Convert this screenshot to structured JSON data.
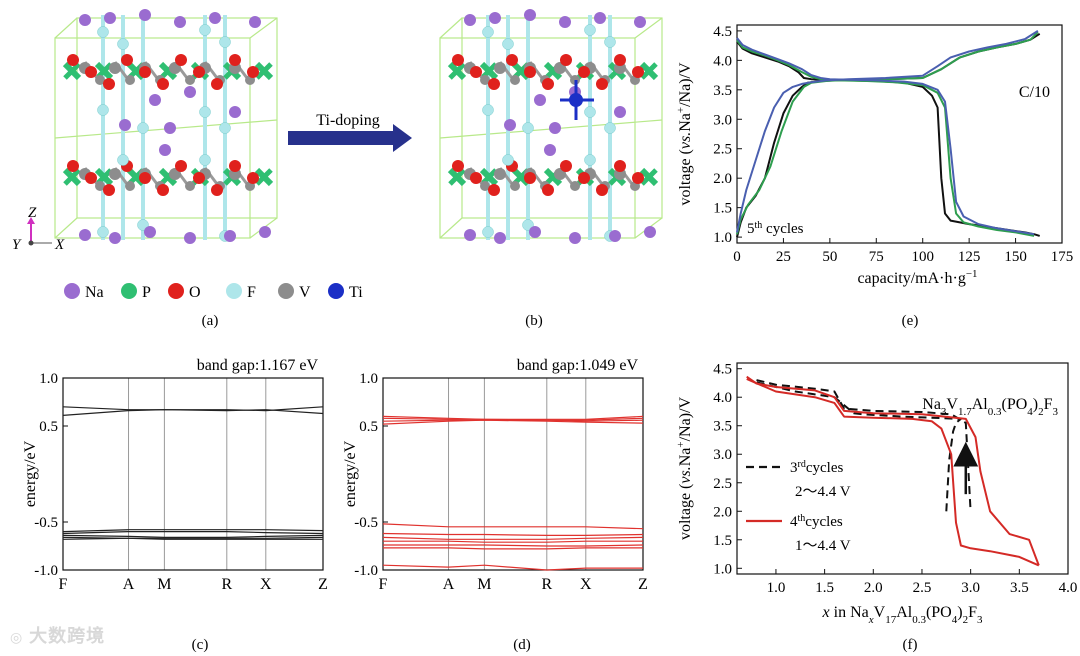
{
  "panels": {
    "a": "(a)",
    "b": "(b)",
    "c": "(c)",
    "d": "(d)",
    "e": "(e)",
    "f": "(f)"
  },
  "crystal": {
    "arrow_label": "Ti-doping",
    "axes": {
      "z": "Z",
      "y": "Y",
      "x": "X"
    },
    "legend": [
      {
        "label": "Na",
        "color": "#9a6cd0"
      },
      {
        "label": "P",
        "color": "#2fbf72"
      },
      {
        "label": "O",
        "color": "#e0211d"
      },
      {
        "label": "F",
        "color": "#aee6ea"
      },
      {
        "label": "V",
        "color": "#8d8d8d"
      },
      {
        "label": "Ti",
        "color": "#1b2fc6"
      }
    ]
  },
  "watermark": "大数跨境",
  "chart_data": [
    {
      "id": "c",
      "type": "line",
      "annotation": "band gap:1.167 eV",
      "ylabel": "energy/eV",
      "ylim": [
        -1.0,
        1.0
      ],
      "yticks": [
        "1.0",
        "0.5",
        "-0.5",
        "-1.0"
      ],
      "ytick_values": [
        1.0,
        0.5,
        -0.5,
        -1.0
      ],
      "xticks": [
        "F",
        "A",
        "M",
        "R",
        "X",
        "Z"
      ],
      "xtick_positions": [
        0,
        0.252,
        0.39,
        0.63,
        0.78,
        1.0
      ],
      "color": "#222222",
      "series": [
        {
          "values": [
            0.7,
            0.67,
            0.67,
            0.67,
            0.66,
            0.7
          ]
        },
        {
          "values": [
            0.61,
            0.66,
            0.67,
            0.66,
            0.67,
            0.63
          ]
        },
        {
          "values": [
            -0.6,
            -0.58,
            -0.58,
            -0.58,
            -0.58,
            -0.59
          ]
        },
        {
          "values": [
            -0.62,
            -0.6,
            -0.6,
            -0.6,
            -0.61,
            -0.62
          ]
        },
        {
          "values": [
            -0.64,
            -0.65,
            -0.66,
            -0.66,
            -0.65,
            -0.64
          ]
        },
        {
          "values": [
            -0.66,
            -0.67,
            -0.67,
            -0.67,
            -0.67,
            -0.66
          ]
        },
        {
          "values": [
            -0.68,
            -0.67,
            -0.68,
            -0.68,
            -0.68,
            -0.68
          ]
        }
      ]
    },
    {
      "id": "d",
      "type": "line",
      "annotation": "band gap:1.049 eV",
      "ylabel": "energy/eV",
      "ylim": [
        -1.0,
        1.0
      ],
      "yticks": [
        "1.0",
        "0.5",
        "-0.5",
        "-1.0"
      ],
      "ytick_values": [
        1.0,
        0.5,
        -0.5,
        -1.0
      ],
      "xticks": [
        "F",
        "A",
        "M",
        "R",
        "X",
        "Z"
      ],
      "xtick_positions": [
        0,
        0.252,
        0.39,
        0.63,
        0.78,
        1.0
      ],
      "color": "#e0322e",
      "series": [
        {
          "values": [
            0.6,
            0.58,
            0.57,
            0.57,
            0.57,
            0.6
          ]
        },
        {
          "values": [
            0.58,
            0.57,
            0.57,
            0.56,
            0.56,
            0.58
          ]
        },
        {
          "values": [
            0.55,
            0.56,
            0.56,
            0.56,
            0.55,
            0.56
          ]
        },
        {
          "values": [
            0.52,
            0.55,
            0.56,
            0.55,
            0.54,
            0.53
          ]
        },
        {
          "values": [
            -0.52,
            -0.55,
            -0.55,
            -0.55,
            -0.55,
            -0.57
          ]
        },
        {
          "values": [
            -0.62,
            -0.63,
            -0.63,
            -0.64,
            -0.64,
            -0.63
          ]
        },
        {
          "values": [
            -0.66,
            -0.68,
            -0.68,
            -0.68,
            -0.67,
            -0.66
          ]
        },
        {
          "values": [
            -0.7,
            -0.7,
            -0.71,
            -0.71,
            -0.7,
            -0.7
          ]
        },
        {
          "values": [
            -0.74,
            -0.74,
            -0.74,
            -0.75,
            -0.75,
            -0.74
          ]
        },
        {
          "values": [
            -0.77,
            -0.77,
            -0.78,
            -0.78,
            -0.77,
            -0.77
          ]
        },
        {
          "values": [
            -0.95,
            -0.97,
            -0.95,
            -1.0,
            -0.98,
            -0.98
          ]
        }
      ]
    },
    {
      "id": "e",
      "type": "line",
      "annotation": "C/10",
      "cycle_prefix": "5",
      "cycle_sup": "th",
      "cycle_suffix": " cycles",
      "ylabel_prefix": "voltage (",
      "ylabel_italic": "vs.",
      "ylabel_mid": "Na",
      "ylabel_sup": "+",
      "ylabel_suffix": "/Na)/V",
      "xlabel_main": "capacity/mA·h·g",
      "xlabel_sup": "−1",
      "xlim": [
        0,
        175
      ],
      "ylim": [
        0.9,
        4.6
      ],
      "xticks": [
        "0",
        "25",
        "50",
        "75",
        "100",
        "125",
        "150",
        "175"
      ],
      "xtick_values": [
        0,
        25,
        50,
        75,
        100,
        125,
        150,
        175
      ],
      "yticks": [
        "1.0",
        "1.5",
        "2.0",
        "2.5",
        "3.0",
        "3.5",
        "4.0",
        "4.5"
      ],
      "ytick_values": [
        1.0,
        1.5,
        2.0,
        2.5,
        3.0,
        3.5,
        4.0,
        4.5
      ],
      "series": [
        {
          "color": "#111111",
          "x": [
            0,
            3,
            8,
            15,
            22,
            28,
            33,
            36,
            40,
            50,
            60,
            75,
            90,
            100,
            105,
            108,
            110,
            112,
            115,
            125,
            140,
            155,
            160,
            163
          ],
          "y": [
            4.32,
            4.2,
            4.12,
            4.05,
            3.98,
            3.9,
            3.8,
            3.7,
            3.68,
            3.67,
            3.66,
            3.65,
            3.62,
            3.55,
            3.4,
            3.2,
            2.0,
            1.4,
            1.28,
            1.22,
            1.15,
            1.08,
            1.05,
            1.02
          ]
        },
        {
          "color": "#111111",
          "x": [
            0,
            2,
            5,
            10,
            15,
            20,
            25,
            30,
            35,
            38,
            45,
            60,
            80,
            100,
            110,
            120,
            130,
            140,
            150,
            158,
            163
          ],
          "y": [
            1.0,
            1.25,
            1.5,
            1.7,
            2.0,
            2.6,
            3.1,
            3.4,
            3.55,
            3.62,
            3.65,
            3.67,
            3.68,
            3.7,
            3.85,
            4.05,
            4.15,
            4.22,
            4.28,
            4.35,
            4.45
          ]
        },
        {
          "color": "#2e9e4f",
          "x": [
            0,
            3,
            8,
            15,
            22,
            28,
            35,
            40,
            45,
            55,
            70,
            85,
            100,
            108,
            112,
            115,
            118,
            122,
            130,
            140,
            150,
            160
          ],
          "y": [
            4.34,
            4.22,
            4.15,
            4.08,
            4.0,
            3.92,
            3.8,
            3.72,
            3.68,
            3.66,
            3.65,
            3.63,
            3.58,
            3.45,
            3.2,
            2.0,
            1.4,
            1.25,
            1.18,
            1.12,
            1.08,
            1.02
          ]
        },
        {
          "color": "#2e9e4f",
          "x": [
            0,
            2,
            6,
            12,
            18,
            24,
            30,
            36,
            40,
            48,
            60,
            80,
            100,
            110,
            120,
            130,
            140,
            150,
            158,
            162
          ],
          "y": [
            1.05,
            1.3,
            1.55,
            1.8,
            2.2,
            2.8,
            3.3,
            3.55,
            3.62,
            3.65,
            3.67,
            3.68,
            3.7,
            3.85,
            4.05,
            4.15,
            4.22,
            4.28,
            4.35,
            4.48
          ]
        },
        {
          "color": "#4a5fb0",
          "x": [
            0,
            3,
            8,
            15,
            22,
            28,
            35,
            40,
            45,
            50,
            60,
            75,
            90,
            100,
            108,
            112,
            115,
            118,
            122,
            130,
            140,
            150,
            160
          ],
          "y": [
            4.38,
            4.26,
            4.18,
            4.1,
            4.02,
            3.95,
            3.85,
            3.75,
            3.7,
            3.68,
            3.67,
            3.66,
            3.64,
            3.6,
            3.5,
            3.3,
            2.5,
            1.6,
            1.35,
            1.22,
            1.15,
            1.1,
            1.05
          ]
        },
        {
          "color": "#4a5fb0",
          "x": [
            0,
            2,
            5,
            10,
            15,
            20,
            25,
            30,
            35,
            40,
            48,
            60,
            80,
            100,
            108,
            115,
            125,
            135,
            145,
            155,
            162
          ],
          "y": [
            1.08,
            1.4,
            1.8,
            2.3,
            2.8,
            3.2,
            3.45,
            3.55,
            3.6,
            3.63,
            3.66,
            3.68,
            3.7,
            3.74,
            3.9,
            4.05,
            4.15,
            4.22,
            4.28,
            4.36,
            4.5
          ]
        }
      ]
    },
    {
      "id": "f",
      "type": "line",
      "formula": [
        "Na",
        "3",
        "V",
        "1.7",
        "Al",
        "0.3",
        "(PO",
        "4",
        ")",
        "2",
        "F",
        "3"
      ],
      "legend": [
        {
          "color": "#111111",
          "dash": "8,5",
          "cycle": "3",
          "sup": "rd",
          "text": "cycles",
          "range": "2～4.4 V"
        },
        {
          "color": "#d42a26",
          "dash": "",
          "cycle": "4",
          "sup": "th",
          "text": "cycles",
          "range": "1～4.4 V"
        }
      ],
      "ylabel_prefix": "voltage (",
      "ylabel_italic": "vs.",
      "ylabel_mid": "Na",
      "ylabel_sup": "+",
      "ylabel_suffix": "/Na)/V",
      "xlabel": [
        "x",
        " in Na",
        "x",
        "V",
        "17",
        "Al",
        "0.3",
        "(PO",
        "4",
        ")",
        "2",
        "F",
        "3"
      ],
      "xlim": [
        0.6,
        4.0
      ],
      "ylim": [
        0.9,
        4.6
      ],
      "xticks": [
        "1.0",
        "1.5",
        "2.0",
        "2.5",
        "3.0",
        "3.5",
        "4.0"
      ],
      "xtick_values": [
        1.0,
        1.5,
        2.0,
        2.5,
        3.0,
        3.5,
        4.0
      ],
      "yticks": [
        "1.0",
        "1.5",
        "2.0",
        "2.5",
        "3.0",
        "3.5",
        "4.0",
        "4.5"
      ],
      "ytick_values": [
        1.0,
        1.5,
        2.0,
        2.5,
        3.0,
        3.5,
        4.0,
        4.5
      ],
      "series": [
        {
          "color": "#111111",
          "dash": "8,5",
          "x": [
            0.8,
            1.0,
            1.4,
            1.6,
            1.7,
            2.0,
            2.5,
            2.8,
            2.95,
            3.0
          ],
          "y": [
            4.3,
            4.22,
            4.15,
            4.1,
            3.8,
            3.76,
            3.74,
            3.7,
            3.55,
            2.0
          ]
        },
        {
          "color": "#111111",
          "dash": "8,5",
          "x": [
            2.75,
            2.78,
            2.82,
            2.85,
            2.9,
            2.3,
            1.9,
            1.8,
            1.6,
            1.2,
            0.8
          ],
          "y": [
            2.0,
            2.9,
            3.4,
            3.55,
            3.62,
            3.66,
            3.7,
            3.72,
            4.0,
            4.1,
            4.26
          ]
        },
        {
          "color": "#d42a26",
          "dash": "",
          "x": [
            0.7,
            0.8,
            1.0,
            1.4,
            1.6,
            1.7,
            2.0,
            2.5,
            2.95,
            3.05,
            3.1,
            3.2,
            3.4,
            3.6,
            3.7
          ],
          "y": [
            4.36,
            4.24,
            4.18,
            4.12,
            4.0,
            3.76,
            3.72,
            3.7,
            3.62,
            3.3,
            2.7,
            2.0,
            1.6,
            1.5,
            1.05
          ]
        },
        {
          "color": "#d42a26",
          "dash": "",
          "x": [
            3.7,
            3.5,
            3.2,
            3.0,
            2.9,
            2.85,
            2.8,
            2.7,
            2.6,
            2.4,
            2.0,
            1.7,
            1.6,
            1.4,
            1.0,
            0.7
          ],
          "y": [
            1.05,
            1.2,
            1.3,
            1.35,
            1.4,
            1.8,
            3.0,
            3.45,
            3.58,
            3.62,
            3.64,
            3.66,
            3.9,
            4.0,
            4.1,
            4.32
          ]
        }
      ]
    }
  ]
}
